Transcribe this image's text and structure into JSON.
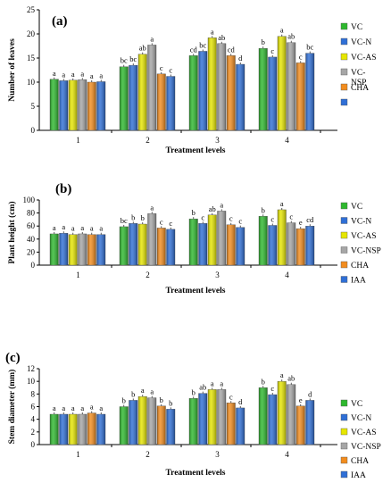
{
  "chart_data": [
    {
      "type": "bar",
      "panel_label": "(a)",
      "title": "",
      "xlabel": "Treatment levels",
      "ylabel": "Number of leaves",
      "ylim": [
        0,
        25
      ],
      "yticks": [
        0,
        5,
        10,
        15,
        20,
        25
      ],
      "categories": [
        "1",
        "2",
        "3",
        "4"
      ],
      "legend_position": "right",
      "series": [
        {
          "name": "VC",
          "color": "#2eb82e",
          "values": [
            10.6,
            13.2,
            15.5,
            17.0
          ],
          "letters": [
            "a",
            "bc",
            "cd",
            "b"
          ]
        },
        {
          "name": "VC-N",
          "color": "#2f6fd6",
          "values": [
            10.3,
            13.5,
            16.4,
            15.2
          ],
          "letters": [
            "a",
            "bc",
            "bc",
            "c"
          ]
        },
        {
          "name": "VC-AS",
          "color": "#e6e600",
          "values": [
            10.4,
            15.8,
            19.2,
            19.5
          ],
          "letters": [
            "a",
            "ab",
            "a",
            "a"
          ]
        },
        {
          "name": "VC-\nNSP",
          "color": "#a6a6a6",
          "values": [
            10.5,
            17.7,
            18.0,
            18.2
          ],
          "letters": [
            "a",
            "a",
            "ab",
            "ab"
          ]
        },
        {
          "name": "CHA",
          "color": "#f28c1e",
          "values": [
            10.0,
            11.7,
            15.5,
            14.0
          ],
          "letters": [
            "a",
            "c",
            "cd",
            "c"
          ]
        },
        {
          "name": "",
          "color": "#2f6fd6",
          "values": [
            10.1,
            11.2,
            13.7,
            16.0
          ],
          "letters": [
            "a",
            "c",
            "d",
            "bc"
          ]
        }
      ]
    },
    {
      "type": "bar",
      "panel_label": "(b)",
      "title": "",
      "xlabel": "Treatment levels",
      "ylabel": "Plant height (cm)",
      "ylim": [
        0,
        100
      ],
      "yticks": [
        0,
        20,
        40,
        60,
        80,
        100
      ],
      "categories": [
        "1",
        "2",
        "3",
        "4"
      ],
      "legend_position": "right",
      "series": [
        {
          "name": "VC",
          "color": "#2eb82e",
          "values": [
            48,
            59,
            71,
            75
          ],
          "letters": [
            "a",
            "bc",
            "b",
            "b"
          ]
        },
        {
          "name": "VC-N",
          "color": "#2f6fd6",
          "values": [
            49,
            64,
            64,
            61
          ],
          "letters": [
            "a",
            "b",
            "c",
            "c"
          ]
        },
        {
          "name": "VC-AS",
          "color": "#e6e600",
          "values": [
            47,
            63,
            77,
            85
          ],
          "letters": [
            "a",
            "b",
            "ab",
            "a"
          ]
        },
        {
          "name": "VC-NSP",
          "color": "#a6a6a6",
          "values": [
            48,
            79,
            83,
            65
          ],
          "letters": [
            "a",
            "a",
            "a",
            "c"
          ]
        },
        {
          "name": "CHA",
          "color": "#f28c1e",
          "values": [
            47,
            57,
            62,
            56
          ],
          "letters": [
            "a",
            "c",
            "c",
            "e"
          ]
        },
        {
          "name": "IAA",
          "color": "#2f6fd6",
          "values": [
            47,
            55,
            58,
            60
          ],
          "letters": [
            "a",
            "c",
            "c",
            "cd"
          ]
        }
      ]
    },
    {
      "type": "bar",
      "panel_label": "(c)",
      "title": "",
      "xlabel": "Treatment levels",
      "ylabel": "Stem diameter (mm)",
      "ylim": [
        0,
        12
      ],
      "yticks": [
        0,
        2,
        4,
        6,
        8,
        10,
        12
      ],
      "categories": [
        "1",
        "2",
        "3",
        "4"
      ],
      "legend_position": "right",
      "series": [
        {
          "name": "VC",
          "color": "#2eb82e",
          "values": [
            4.8,
            6.0,
            7.3,
            9.0
          ],
          "letters": [
            "a",
            "b",
            "b",
            "b"
          ]
        },
        {
          "name": "VC-N",
          "color": "#2f6fd6",
          "values": [
            4.8,
            7.0,
            8.1,
            7.9
          ],
          "letters": [
            "a",
            "b",
            "ab",
            "c"
          ]
        },
        {
          "name": "VC-AS",
          "color": "#e6e600",
          "values": [
            4.8,
            7.6,
            8.7,
            10.0
          ],
          "letters": [
            "a",
            "a",
            "a",
            "a"
          ]
        },
        {
          "name": "VC-NSP",
          "color": "#a6a6a6",
          "values": [
            4.8,
            7.4,
            8.7,
            9.5
          ],
          "letters": [
            "a",
            "a",
            "a",
            "ab"
          ]
        },
        {
          "name": "CHA",
          "color": "#f28c1e",
          "values": [
            5.0,
            6.1,
            6.6,
            6.1
          ],
          "letters": [
            "a",
            "b",
            "c",
            "e"
          ]
        },
        {
          "name": "IAA",
          "color": "#2f6fd6",
          "values": [
            4.8,
            5.6,
            5.8,
            7.0
          ],
          "letters": [
            "a",
            "b",
            "d",
            "d"
          ]
        }
      ]
    }
  ]
}
